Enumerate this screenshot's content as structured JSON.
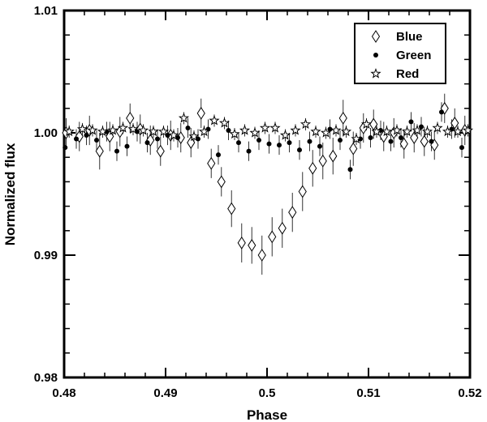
{
  "chart_data": {
    "type": "scatter",
    "title": "",
    "xlabel": "Phase",
    "ylabel": "Normalized flux",
    "xlim": [
      0.48,
      0.52
    ],
    "ylim": [
      0.98,
      1.01
    ],
    "xticks": [
      "0.48",
      "0.49",
      "0.5",
      "0.51",
      "0.52"
    ],
    "yticks": [
      "0.98",
      "0.99",
      "1.00",
      "1.01"
    ],
    "xtick_values": [
      0.48,
      0.49,
      0.5,
      0.51,
      0.52
    ],
    "ytick_values": [
      0.98,
      0.99,
      1.0,
      1.01
    ],
    "grid": false,
    "legend_position": "top-right",
    "series": [
      {
        "name": "Blue",
        "marker": "diamond",
        "x": [
          0.4802,
          0.4815,
          0.4825,
          0.4835,
          0.4845,
          0.4855,
          0.4865,
          0.4875,
          0.4885,
          0.4895,
          0.4905,
          0.4915,
          0.4925,
          0.4935,
          0.4945,
          0.4955,
          0.4965,
          0.4975,
          0.4985,
          0.4995,
          0.5005,
          0.5015,
          0.5025,
          0.5035,
          0.5045,
          0.5055,
          0.5065,
          0.5075,
          0.5085,
          0.5095,
          0.5105,
          0.5115,
          0.5125,
          0.5135,
          0.5145,
          0.5155,
          0.5165,
          0.5175,
          0.5185,
          0.5195
        ],
        "y": [
          1.0,
          0.9997,
          1.0002,
          0.9985,
          0.9997,
          1.0001,
          1.0012,
          1.0003,
          0.9994,
          0.9985,
          0.9998,
          0.9996,
          0.9992,
          1.0016,
          0.9975,
          0.996,
          0.9938,
          0.991,
          0.9908,
          0.99,
          0.9915,
          0.9922,
          0.9935,
          0.9952,
          0.9971,
          0.9977,
          0.9981,
          1.0012,
          0.9987,
          1.0004,
          1.0007,
          0.9997,
          1.0,
          0.9991,
          0.9996,
          0.9993,
          0.999,
          1.002,
          1.0008,
          1.0002
        ],
        "yerr": [
          0.0012,
          0.0012,
          0.0012,
          0.0015,
          0.0012,
          0.0012,
          0.0012,
          0.0012,
          0.0012,
          0.0012,
          0.0012,
          0.0012,
          0.0012,
          0.0012,
          0.0012,
          0.0012,
          0.0015,
          0.0016,
          0.0015,
          0.0016,
          0.0016,
          0.0016,
          0.0016,
          0.0016,
          0.0015,
          0.0015,
          0.0015,
          0.0015,
          0.0014,
          0.0012,
          0.0012,
          0.0012,
          0.0012,
          0.0012,
          0.0012,
          0.0012,
          0.0012,
          0.0012,
          0.0012,
          0.0012
        ]
      },
      {
        "name": "Green",
        "marker": "filled-circle",
        "x": [
          0.4801,
          0.4812,
          0.4822,
          0.4832,
          0.4842,
          0.4852,
          0.4862,
          0.4872,
          0.4882,
          0.4892,
          0.4902,
          0.4912,
          0.4922,
          0.4932,
          0.4942,
          0.4952,
          0.4962,
          0.4972,
          0.4982,
          0.4992,
          0.5002,
          0.5012,
          0.5022,
          0.5032,
          0.5042,
          0.5052,
          0.5062,
          0.5072,
          0.5082,
          0.5092,
          0.5102,
          0.5112,
          0.5122,
          0.5132,
          0.5142,
          0.5152,
          0.5162,
          0.5172,
          0.5182,
          0.5192
        ],
        "y": [
          0.9988,
          0.9995,
          0.9998,
          0.9994,
          1.0001,
          0.9985,
          0.9989,
          1.0001,
          0.9992,
          0.9995,
          0.9998,
          0.9996,
          1.0004,
          0.9995,
          1.0003,
          0.9982,
          1.0002,
          0.9992,
          0.9985,
          0.9994,
          0.9991,
          0.999,
          0.9992,
          0.9986,
          0.9993,
          0.9989,
          1.0003,
          0.9994,
          0.997,
          0.9995,
          0.9996,
          1.0002,
          0.9993,
          0.9996,
          1.0009,
          1.0005,
          0.9993,
          1.0017,
          1.0003,
          0.9988
        ],
        "yerr": [
          0.0008,
          0.0008,
          0.0008,
          0.0008,
          0.0008,
          0.0008,
          0.0008,
          0.0008,
          0.0008,
          0.0008,
          0.0008,
          0.0008,
          0.0008,
          0.0008,
          0.0008,
          0.0008,
          0.0008,
          0.0008,
          0.0008,
          0.0008,
          0.0008,
          0.0008,
          0.0008,
          0.0008,
          0.0008,
          0.0008,
          0.0008,
          0.0008,
          0.0008,
          0.0008,
          0.0008,
          0.0008,
          0.0008,
          0.0008,
          0.0008,
          0.0008,
          0.0008,
          0.0008,
          0.0008,
          0.0008
        ]
      },
      {
        "name": "Red",
        "marker": "open-star",
        "x": [
          0.4805,
          0.4818,
          0.4828,
          0.4838,
          0.4848,
          0.4858,
          0.4868,
          0.4878,
          0.4888,
          0.4898,
          0.4908,
          0.4918,
          0.4928,
          0.4938,
          0.4948,
          0.4958,
          0.4968,
          0.4978,
          0.4988,
          0.4998,
          0.5008,
          0.5018,
          0.5028,
          0.5038,
          0.5048,
          0.5058,
          0.5068,
          0.5078,
          0.5088,
          0.5098,
          0.5108,
          0.5118,
          0.5128,
          0.5138,
          0.5148,
          0.5158,
          0.5168,
          0.5178,
          0.5188,
          0.5198
        ],
        "y": [
          1.0001,
          1.0003,
          1.0002,
          1.0001,
          1.0002,
          1.0004,
          1.0003,
          1.0002,
          1.0001,
          1.0001,
          0.9998,
          1.0012,
          0.9997,
          1.0001,
          1.001,
          1.0008,
          0.9999,
          1.0002,
          1.0,
          1.0004,
          1.0004,
          0.9998,
          1.0002,
          1.0007,
          1.0001,
          1.0,
          1.0002,
          1.0001,
          0.9995,
          1.0007,
          1.0001,
          1.0001,
          1.0002,
          1.0001,
          1.0002,
          1.0001,
          1.0004,
          1.0001,
          1.0001,
          1.0002
        ],
        "yerr": [
          0.0005,
          0.0005,
          0.0005,
          0.0005,
          0.0005,
          0.0005,
          0.0005,
          0.0005,
          0.0005,
          0.0005,
          0.0005,
          0.0005,
          0.0005,
          0.0005,
          0.0005,
          0.0005,
          0.0005,
          0.0005,
          0.0005,
          0.0005,
          0.0005,
          0.0005,
          0.0005,
          0.0005,
          0.0005,
          0.0005,
          0.0005,
          0.0005,
          0.0005,
          0.0005,
          0.0005,
          0.0005,
          0.0005,
          0.0005,
          0.0005,
          0.0005,
          0.0005,
          0.0005,
          0.0005,
          0.0005
        ]
      }
    ]
  }
}
